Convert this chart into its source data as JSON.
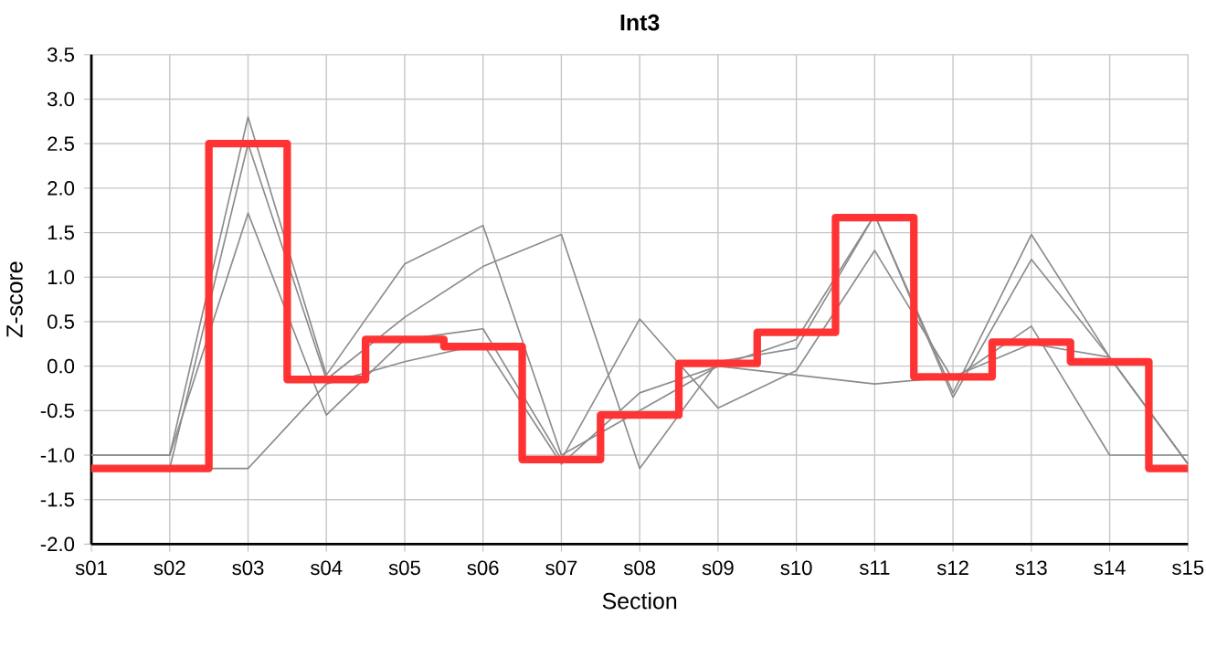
{
  "chart_data": {
    "type": "line",
    "title": "Int3",
    "xlabel": "Section",
    "ylabel": "Z-score",
    "categories": [
      "s01",
      "s02",
      "s03",
      "s04",
      "s05",
      "s06",
      "s07",
      "s08",
      "s09",
      "s10",
      "s11",
      "s12",
      "s13",
      "s14",
      "s15"
    ],
    "series": [
      {
        "color": "#8c8c8c",
        "values": [
          -1.0,
          -1.0,
          2.8,
          -0.1,
          1.15,
          1.58,
          -1.0,
          -0.5,
          0.0,
          0.3,
          1.7,
          -0.3,
          1.48,
          0.1,
          -1.1
        ]
      },
      {
        "color": "#8c8c8c",
        "values": [
          -1.15,
          -1.15,
          2.5,
          -0.15,
          0.55,
          1.12,
          1.48,
          -1.15,
          0.05,
          0.2,
          1.7,
          -0.35,
          1.2,
          0.1,
          -1.1
        ]
      },
      {
        "color": "#8c8c8c",
        "values": [
          -1.0,
          -1.0,
          1.72,
          -0.55,
          0.3,
          0.42,
          -1.05,
          0.53,
          -0.47,
          -0.05,
          1.3,
          -0.15,
          0.45,
          -1.0,
          -1.0
        ]
      },
      {
        "color": "#8c8c8c",
        "values": [
          -1.15,
          -1.15,
          -1.15,
          -0.2,
          0.05,
          0.25,
          -1.1,
          -0.3,
          0.0,
          -0.1,
          -0.2,
          -0.12,
          0.25,
          0.1,
          -1.1
        ]
      },
      {
        "type": "step",
        "color": "#ff3333",
        "values": [
          -1.15,
          -1.15,
          2.5,
          -0.15,
          0.3,
          0.22,
          -1.05,
          -0.55,
          0.03,
          0.38,
          1.67,
          -0.12,
          0.27,
          0.05,
          -1.15
        ]
      }
    ],
    "ylim": [
      -2.0,
      3.5
    ],
    "yticks": [
      {
        "value": -2.0,
        "label": "-2.0"
      },
      {
        "value": -1.5,
        "label": "-1.5"
      },
      {
        "value": -1.0,
        "label": "-1.0"
      },
      {
        "value": -0.5,
        "label": "-0.5"
      },
      {
        "value": 0.0,
        "label": "0.0"
      },
      {
        "value": 0.5,
        "label": "0.5"
      },
      {
        "value": 1.0,
        "label": "1.0"
      },
      {
        "value": 1.5,
        "label": "1.5"
      },
      {
        "value": 2.0,
        "label": "2.0"
      },
      {
        "value": 2.5,
        "label": "2.5"
      },
      {
        "value": 3.0,
        "label": "3.0"
      },
      {
        "value": 3.5,
        "label": "3.5"
      }
    ],
    "grid": true,
    "marker": "none",
    "line_style": "solid"
  }
}
